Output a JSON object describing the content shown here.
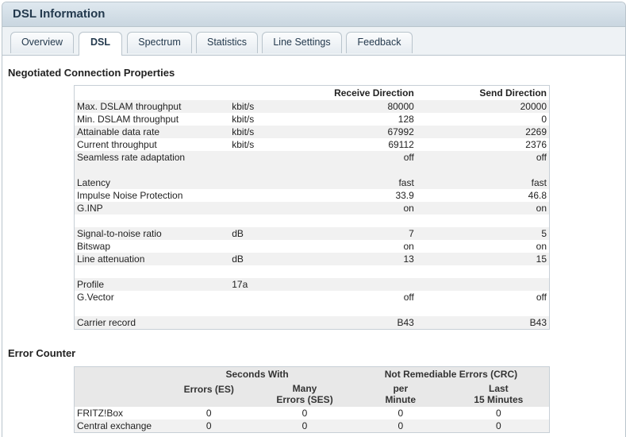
{
  "window": {
    "title": "DSL Information"
  },
  "tabs": [
    {
      "label": "Overview"
    },
    {
      "label": "DSL"
    },
    {
      "label": "Spectrum"
    },
    {
      "label": "Statistics"
    },
    {
      "label": "Line Settings"
    },
    {
      "label": "Feedback"
    }
  ],
  "section1": {
    "title": "Negotiated Connection Properties",
    "headers": {
      "receive": "Receive Direction",
      "send": "Send Direction"
    },
    "rows": [
      {
        "label": "Max. DSLAM throughput",
        "unit": "kbit/s",
        "receive": "80000",
        "send": "20000"
      },
      {
        "label": "Min. DSLAM throughput",
        "unit": "kbit/s",
        "receive": "128",
        "send": "0"
      },
      {
        "label": "Attainable data rate",
        "unit": "kbit/s",
        "receive": "67992",
        "send": "2269"
      },
      {
        "label": "Current throughput",
        "unit": "kbit/s",
        "receive": "69112",
        "send": "2376"
      },
      {
        "label": "Seamless rate adaptation",
        "unit": "",
        "receive": "off",
        "send": "off"
      },
      {
        "label": "",
        "unit": "",
        "receive": "",
        "send": ""
      },
      {
        "label": "Latency",
        "unit": "",
        "receive": "fast",
        "send": "fast"
      },
      {
        "label": "Impulse Noise Protection",
        "unit": "",
        "receive": "33.9",
        "send": "46.8"
      },
      {
        "label": "G.INP",
        "unit": "",
        "receive": "on",
        "send": "on"
      },
      {
        "label": "",
        "unit": "",
        "receive": "",
        "send": ""
      },
      {
        "label": "Signal-to-noise ratio",
        "unit": "dB",
        "receive": "7",
        "send": "5"
      },
      {
        "label": "Bitswap",
        "unit": "",
        "receive": "on",
        "send": "on"
      },
      {
        "label": "Line attenuation",
        "unit": "dB",
        "receive": "13",
        "send": "15"
      },
      {
        "label": "",
        "unit": "",
        "receive": "",
        "send": ""
      },
      {
        "label": "Profile",
        "unit": "17a",
        "receive": "",
        "send": ""
      },
      {
        "label": "G.Vector",
        "unit": "",
        "receive": "off",
        "send": "off"
      },
      {
        "label": "",
        "unit": "",
        "receive": "",
        "send": ""
      },
      {
        "label": "Carrier record",
        "unit": "",
        "receive": "B43",
        "send": "B43"
      }
    ]
  },
  "section2": {
    "title": "Error Counter",
    "group_headers": {
      "seconds_with": "Seconds With",
      "not_remediable": "Not Remediable Errors (CRC)"
    },
    "col_headers": {
      "es": "Errors (ES)",
      "ses_1": "Many",
      "ses_2": "Errors (SES)",
      "per_1": "per",
      "per_2": "Minute",
      "last_1": "Last",
      "last_2": "15 Minutes"
    },
    "rows": [
      {
        "label": "FRITZ!Box",
        "es": "0",
        "ses": "0",
        "per_minute": "0",
        "last_15": "0"
      },
      {
        "label": "Central exchange",
        "es": "0",
        "ses": "0",
        "per_minute": "0",
        "last_15": "0"
      }
    ]
  }
}
